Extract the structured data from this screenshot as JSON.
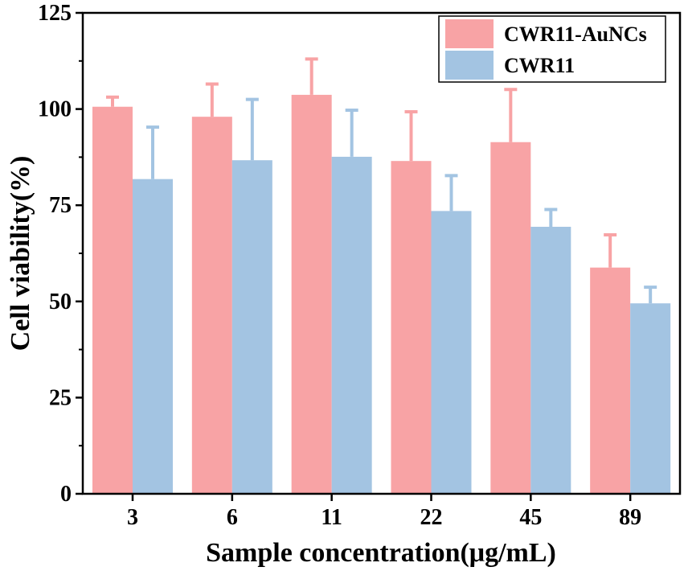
{
  "chart_data": {
    "type": "bar",
    "title": "",
    "xlabel": "Sample concentration(μg/mL)",
    "ylabel": "Cell viability(%)",
    "ylim": [
      0,
      125
    ],
    "yticks": [
      0,
      25,
      50,
      75,
      100,
      125
    ],
    "categories": [
      "3",
      "6",
      "11",
      "22",
      "45",
      "89"
    ],
    "series": [
      {
        "name": "CWR11-AuNCs",
        "color": "#F8A3A5",
        "values": [
          100.6,
          98.0,
          103.7,
          86.5,
          91.4,
          58.8
        ],
        "errors": [
          2.5,
          8.5,
          9.3,
          12.8,
          13.7,
          8.5
        ]
      },
      {
        "name": "CWR11",
        "color": "#A3C4E2",
        "values": [
          81.8,
          86.7,
          87.6,
          73.5,
          69.4,
          49.5
        ],
        "errors": [
          13.5,
          15.8,
          12.1,
          9.2,
          4.5,
          4.2
        ]
      }
    ],
    "legend_position": "top-right",
    "grid": false
  }
}
